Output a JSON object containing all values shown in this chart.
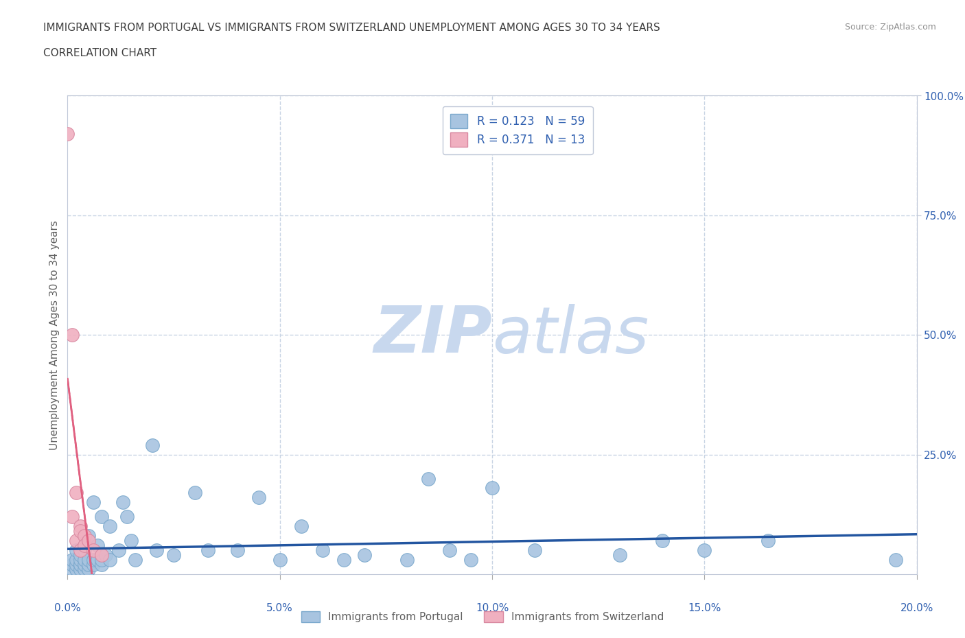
{
  "title_line1": "IMMIGRANTS FROM PORTUGAL VS IMMIGRANTS FROM SWITZERLAND UNEMPLOYMENT AMONG AGES 30 TO 34 YEARS",
  "title_line2": "CORRELATION CHART",
  "source_text": "Source: ZipAtlas.com",
  "ylabel": "Unemployment Among Ages 30 to 34 years",
  "xlim": [
    0.0,
    0.2
  ],
  "ylim": [
    0.0,
    1.0
  ],
  "xtick_vals": [
    0.0,
    0.05,
    0.1,
    0.15,
    0.2
  ],
  "ytick_vals": [
    0.25,
    0.5,
    0.75,
    1.0
  ],
  "portugal_R": 0.123,
  "portugal_N": 59,
  "switzerland_R": 0.371,
  "switzerland_N": 13,
  "portugal_color": "#a8c4e0",
  "portugal_edge_color": "#7aa8cc",
  "portugal_line_color": "#2255a0",
  "switzerland_color": "#f0b0c0",
  "switzerland_edge_color": "#d888a0",
  "switzerland_line_color": "#e06080",
  "watermark_zip": "ZIP",
  "watermark_atlas": "atlas",
  "watermark_color": "#c8d8ee",
  "portugal_scatter_x": [
    0.001,
    0.001,
    0.001,
    0.002,
    0.002,
    0.002,
    0.002,
    0.003,
    0.003,
    0.003,
    0.003,
    0.003,
    0.004,
    0.004,
    0.004,
    0.004,
    0.005,
    0.005,
    0.005,
    0.005,
    0.006,
    0.006,
    0.006,
    0.007,
    0.007,
    0.008,
    0.008,
    0.008,
    0.009,
    0.01,
    0.01,
    0.012,
    0.013,
    0.014,
    0.015,
    0.016,
    0.02,
    0.021,
    0.025,
    0.03,
    0.033,
    0.04,
    0.045,
    0.05,
    0.055,
    0.06,
    0.065,
    0.07,
    0.08,
    0.085,
    0.09,
    0.095,
    0.1,
    0.11,
    0.13,
    0.14,
    0.15,
    0.165,
    0.195
  ],
  "portugal_scatter_y": [
    0.01,
    0.02,
    0.03,
    0.01,
    0.02,
    0.03,
    0.05,
    0.01,
    0.02,
    0.02,
    0.03,
    0.04,
    0.01,
    0.02,
    0.03,
    0.05,
    0.01,
    0.02,
    0.03,
    0.08,
    0.02,
    0.03,
    0.15,
    0.03,
    0.06,
    0.02,
    0.03,
    0.12,
    0.04,
    0.03,
    0.1,
    0.05,
    0.15,
    0.12,
    0.07,
    0.03,
    0.27,
    0.05,
    0.04,
    0.17,
    0.05,
    0.05,
    0.16,
    0.03,
    0.1,
    0.05,
    0.03,
    0.04,
    0.03,
    0.2,
    0.05,
    0.03,
    0.18,
    0.05,
    0.04,
    0.07,
    0.05,
    0.07,
    0.03
  ],
  "switzerland_scatter_x": [
    0.0,
    0.001,
    0.001,
    0.002,
    0.002,
    0.003,
    0.003,
    0.003,
    0.004,
    0.004,
    0.005,
    0.006,
    0.008
  ],
  "switzerland_scatter_y": [
    0.92,
    0.5,
    0.12,
    0.17,
    0.07,
    0.1,
    0.09,
    0.05,
    0.08,
    0.06,
    0.07,
    0.05,
    0.04
  ],
  "background_color": "#ffffff",
  "grid_color": "#c8d4e4",
  "title_color": "#404040",
  "axis_color": "#3060b0",
  "legend_label_portugal": "Immigrants from Portugal",
  "legend_label_switzerland": "Immigrants from Switzerland"
}
